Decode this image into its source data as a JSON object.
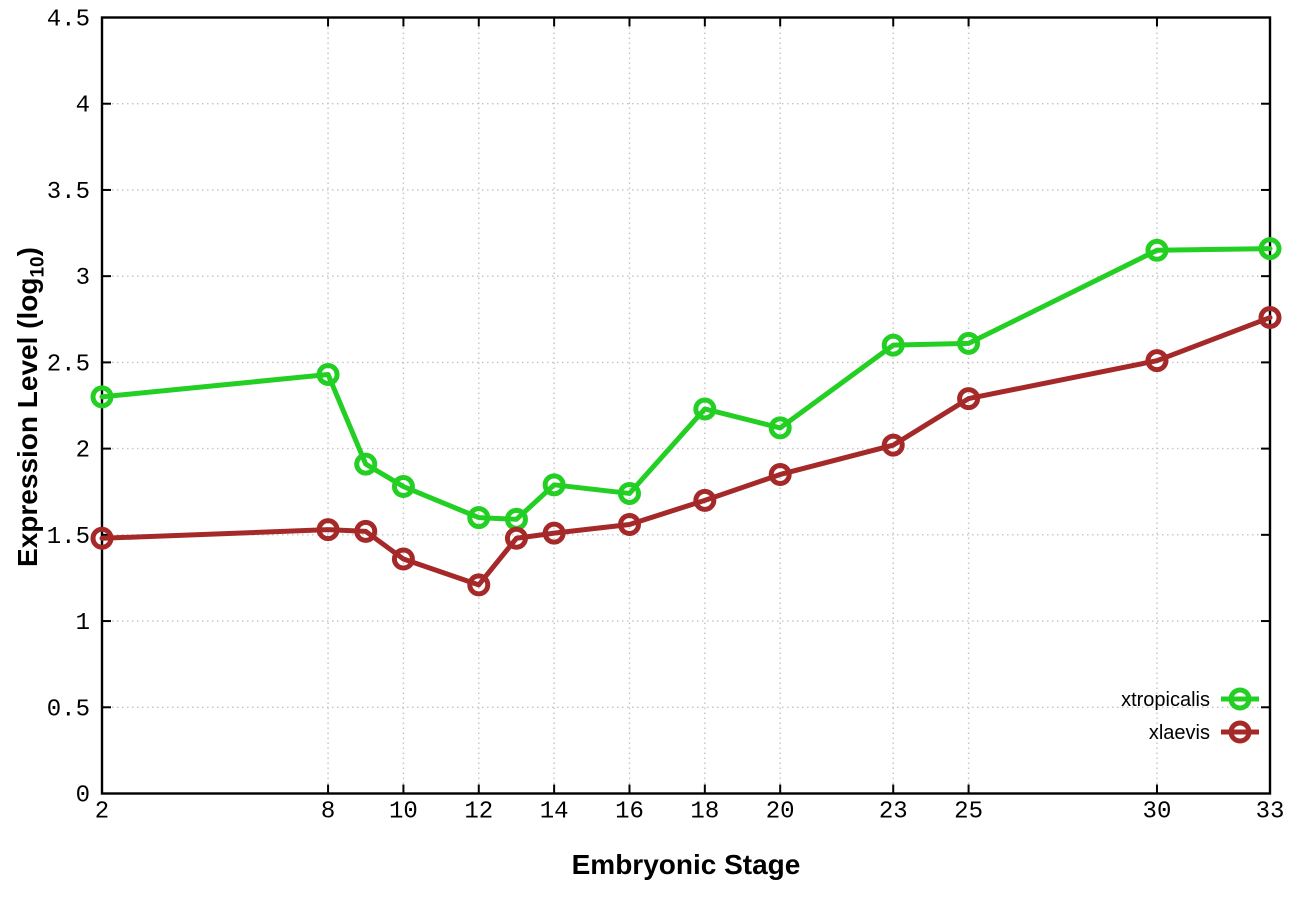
{
  "chart_data": {
    "type": "line",
    "title": "",
    "xlabel": "Embryonic Stage",
    "ylabel": "Expression Level (log10)",
    "ylabel_parts": {
      "pre": "Expression Level (log",
      "sub": "10",
      "post": ")"
    },
    "x": [
      2,
      8,
      9,
      10,
      12,
      13,
      14,
      16,
      18,
      20,
      23,
      25,
      30,
      33
    ],
    "series": [
      {
        "name": "xtropicalis",
        "color": "#22cf22",
        "values": [
          2.3,
          2.43,
          1.91,
          1.78,
          1.6,
          1.59,
          1.79,
          1.74,
          2.23,
          2.12,
          2.6,
          2.61,
          3.15,
          3.16
        ]
      },
      {
        "name": "xlaevis",
        "color": "#a62929",
        "values": [
          1.48,
          1.53,
          1.52,
          1.36,
          1.21,
          1.48,
          1.51,
          1.56,
          1.7,
          1.85,
          2.02,
          2.29,
          2.51,
          2.76
        ]
      }
    ],
    "xlim": [
      2,
      33
    ],
    "ylim": [
      0,
      4.5
    ],
    "x_ticks": [
      2,
      8,
      10,
      12,
      14,
      16,
      18,
      20,
      23,
      25,
      30,
      33
    ],
    "x_tick_labels": [
      "2",
      "8",
      "10",
      "12",
      "14",
      "16",
      "18",
      "20",
      "23",
      "25",
      "30",
      "33"
    ],
    "y_ticks": [
      0,
      0.5,
      1,
      1.5,
      2,
      2.5,
      3,
      3.5,
      4,
      4.5
    ],
    "y_tick_labels": [
      "0",
      "0.5",
      "1",
      "1.5",
      "2",
      "2.5",
      "3",
      "3.5",
      "4",
      "4.5"
    ],
    "grid": true,
    "legend_position": "bottom-right",
    "marker": "open-circle",
    "colors": {
      "grid": "#c4c4c4",
      "axis": "#000000",
      "text": "#000000",
      "background": "#ffffff"
    }
  }
}
